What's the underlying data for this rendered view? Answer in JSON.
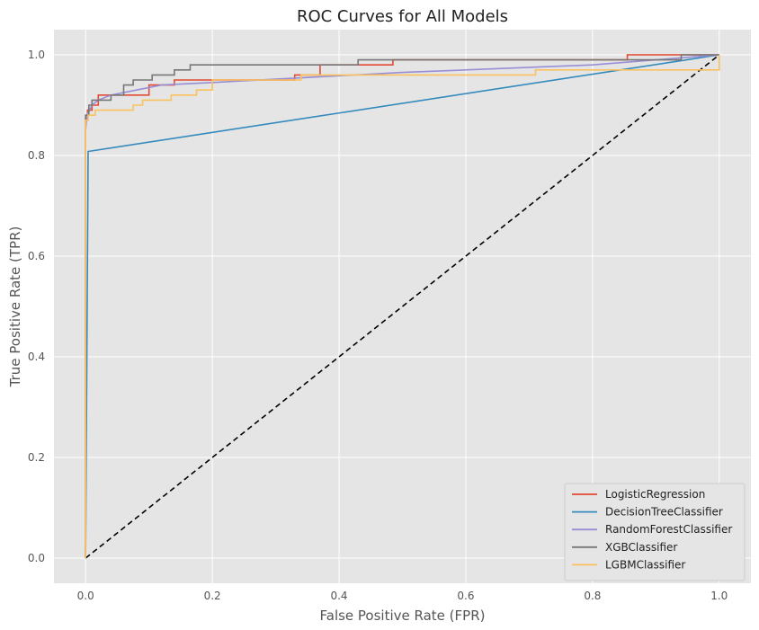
{
  "chart_data": {
    "type": "line",
    "title": "ROC Curves for All Models",
    "xlabel": "False Positive Rate (FPR)",
    "ylabel": "True Positive Rate (TPR)",
    "xlim": [
      -0.05,
      1.05
    ],
    "ylim": [
      -0.05,
      1.05
    ],
    "xticks": [
      0.0,
      0.2,
      0.4,
      0.6,
      0.8,
      1.0
    ],
    "yticks": [
      0.0,
      0.2,
      0.4,
      0.6,
      0.8,
      1.0
    ],
    "xtick_labels": [
      "0.0",
      "0.2",
      "0.4",
      "0.6",
      "0.8",
      "1.0"
    ],
    "ytick_labels": [
      "0.0",
      "0.2",
      "0.4",
      "0.6",
      "0.8",
      "1.0"
    ],
    "grid": true,
    "background": "#e5e5e5",
    "legend_position": "bottom-right",
    "series": [
      {
        "name": "LogisticRegression",
        "color": "#e24a33",
        "x": [
          0,
          0,
          0.003,
          0.003,
          0.01,
          0.01,
          0.02,
          0.02,
          0.05,
          0.05,
          0.1,
          0.1,
          0.14,
          0.14,
          0.2,
          0.2,
          0.33,
          0.33,
          0.37,
          0.37,
          0.485,
          0.485,
          0.855,
          0.855,
          1.0
        ],
        "y": [
          0,
          0.87,
          0.87,
          0.89,
          0.89,
          0.9,
          0.9,
          0.92,
          0.92,
          0.92,
          0.92,
          0.94,
          0.94,
          0.95,
          0.95,
          0.95,
          0.95,
          0.96,
          0.96,
          0.98,
          0.98,
          0.99,
          0.99,
          1.0,
          1.0
        ]
      },
      {
        "name": "DecisionTreeClassifier",
        "color": "#348abd",
        "x": [
          0,
          0.004,
          1.0
        ],
        "y": [
          0,
          0.808,
          1.0
        ]
      },
      {
        "name": "RandomForestClassifier",
        "color": "#988ed5",
        "x": [
          0,
          0,
          0.002,
          0.01,
          0.02,
          0.04,
          0.08,
          0.12,
          0.2,
          0.35,
          0.5,
          0.8,
          0.95,
          1.0
        ],
        "y": [
          0,
          0.85,
          0.88,
          0.9,
          0.91,
          0.92,
          0.93,
          0.94,
          0.945,
          0.955,
          0.965,
          0.98,
          0.995,
          1.0
        ]
      },
      {
        "name": "XGBClassifier",
        "color": "#777777",
        "x": [
          0,
          0,
          0.005,
          0.005,
          0.01,
          0.01,
          0.04,
          0.04,
          0.06,
          0.06,
          0.075,
          0.075,
          0.105,
          0.105,
          0.14,
          0.14,
          0.165,
          0.165,
          0.43,
          0.43,
          0.94,
          0.94,
          1.0
        ],
        "y": [
          0,
          0.88,
          0.88,
          0.9,
          0.9,
          0.91,
          0.91,
          0.92,
          0.92,
          0.94,
          0.94,
          0.95,
          0.95,
          0.96,
          0.96,
          0.97,
          0.97,
          0.98,
          0.98,
          0.99,
          0.99,
          1.0,
          1.0
        ]
      },
      {
        "name": "LGBMClassifier",
        "color": "#fbc15e",
        "x": [
          0,
          0,
          0.004,
          0.004,
          0.015,
          0.015,
          0.075,
          0.075,
          0.09,
          0.09,
          0.135,
          0.135,
          0.175,
          0.175,
          0.2,
          0.2,
          0.34,
          0.34,
          0.71,
          0.71,
          1.0,
          1.0
        ],
        "y": [
          0,
          0.87,
          0.87,
          0.88,
          0.88,
          0.89,
          0.89,
          0.9,
          0.9,
          0.91,
          0.91,
          0.92,
          0.92,
          0.93,
          0.93,
          0.95,
          0.95,
          0.96,
          0.96,
          0.97,
          0.97,
          1.0
        ]
      }
    ],
    "reference_line": {
      "x": [
        0,
        1
      ],
      "y": [
        0,
        1
      ],
      "color": "#000000",
      "style": "dashed"
    }
  }
}
